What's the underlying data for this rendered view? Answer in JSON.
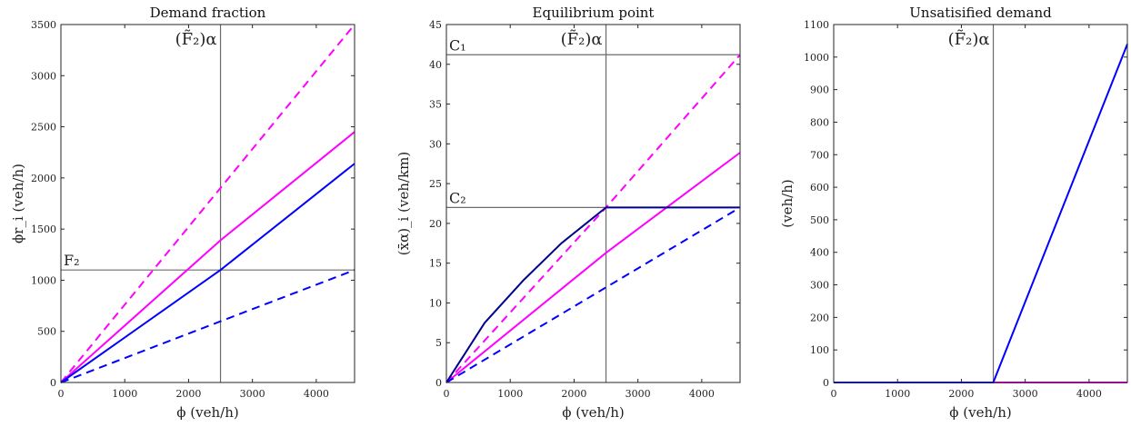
{
  "chart_data": [
    {
      "type": "line",
      "title": "Demand fraction",
      "xlabel": "ϕ (veh/h)",
      "ylabel": "ϕr_i (veh/h)",
      "xlim": [
        0,
        4600
      ],
      "ylim": [
        0,
        3500
      ],
      "xticks": [
        0,
        1000,
        2000,
        3000,
        4000
      ],
      "yticks": [
        0,
        500,
        1000,
        1500,
        2000,
        2500,
        3000,
        3500
      ],
      "grid": false,
      "series": [
        {
          "color": "#ff00ff",
          "dash": true,
          "x": [
            0,
            4600
          ],
          "y": [
            0,
            3500
          ]
        },
        {
          "color": "#ff00ff",
          "dash": false,
          "x": [
            0,
            2500,
            4600
          ],
          "y": [
            0,
            1390,
            2450
          ]
        },
        {
          "color": "#0000ff",
          "dash": false,
          "x": [
            0,
            2500,
            4600
          ],
          "y": [
            0,
            1100,
            2140
          ]
        },
        {
          "color": "#0000ff",
          "dash": true,
          "x": [
            0,
            4600
          ],
          "y": [
            0,
            1100
          ]
        }
      ],
      "refs": [
        {
          "orientation": "vertical",
          "value": 2500,
          "label": "(F̃₂)α"
        },
        {
          "orientation": "horizontal",
          "value": 1100,
          "label": "F₂"
        }
      ]
    },
    {
      "type": "line",
      "title": "Equilibrium point",
      "xlabel": "ϕ (veh/h)",
      "ylabel": "(x̄α)_i (veh/km)",
      "xlim": [
        0,
        4600
      ],
      "ylim": [
        0,
        45
      ],
      "xticks": [
        0,
        1000,
        2000,
        3000,
        4000
      ],
      "yticks": [
        0,
        5,
        10,
        15,
        20,
        25,
        30,
        35,
        40,
        45
      ],
      "grid": false,
      "series": [
        {
          "color": "#ff00ff",
          "dash": true,
          "x": [
            0,
            2500,
            4600
          ],
          "y": [
            0,
            22,
            41.2
          ]
        },
        {
          "color": "#ff00ff",
          "dash": false,
          "x": [
            0,
            2500,
            4600
          ],
          "y": [
            0,
            16.3,
            28.9
          ]
        },
        {
          "color": "#00008b",
          "dash": false,
          "x": [
            0,
            600,
            1200,
            1800,
            2500,
            4600
          ],
          "y": [
            0,
            7.5,
            12.8,
            17.5,
            22,
            22
          ]
        },
        {
          "color": "#0000ff",
          "dash": true,
          "x": [
            0,
            4600
          ],
          "y": [
            0,
            22
          ]
        }
      ],
      "refs": [
        {
          "orientation": "vertical",
          "value": 2500,
          "label": "(F̃₂)α"
        },
        {
          "orientation": "horizontal",
          "value": 41.2,
          "label": "C₁"
        },
        {
          "orientation": "horizontal",
          "value": 22,
          "label": "C₂"
        }
      ]
    },
    {
      "type": "line",
      "title": "Unsatisified demand",
      "xlabel": "ϕ (veh/h)",
      "ylabel": "(veh/h)",
      "xlim": [
        0,
        4600
      ],
      "ylim": [
        0,
        1100
      ],
      "xticks": [
        0,
        1000,
        2000,
        3000,
        4000
      ],
      "yticks": [
        0,
        100,
        200,
        300,
        400,
        500,
        600,
        700,
        800,
        900,
        1000,
        1100
      ],
      "grid": false,
      "series": [
        {
          "color": "#ff00ff",
          "dash": false,
          "x": [
            0,
            4600
          ],
          "y": [
            0,
            0
          ]
        },
        {
          "color": "#0000ff",
          "dash": false,
          "x": [
            0,
            2500,
            4600
          ],
          "y": [
            0,
            0,
            1040
          ]
        }
      ],
      "refs": [
        {
          "orientation": "vertical",
          "value": 2500,
          "label": "(F̃₂)α"
        }
      ]
    }
  ]
}
